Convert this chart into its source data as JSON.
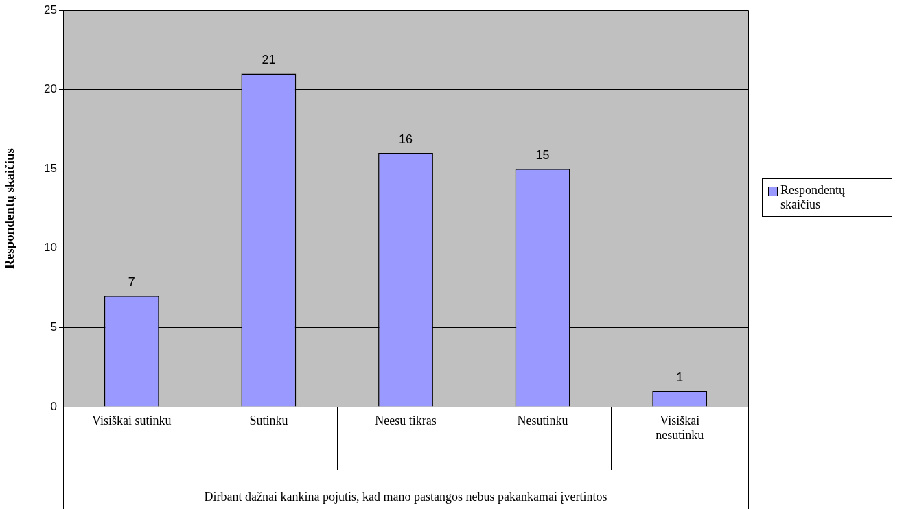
{
  "chart_data": {
    "type": "bar",
    "xlabel": "Dirbant dažnai kankina pojūtis, kad mano pastangos nebus pakankamai įvertintos",
    "ylabel": "Respondentų skaičius",
    "categories": [
      "Visiškai sutinku",
      "Sutinku",
      "Neesu tikras",
      "Nesutinku",
      "Visiškai nesutinku"
    ],
    "series": [
      {
        "name": "Respondentų skaičius",
        "color": "#9999ff",
        "values": [
          7,
          21,
          16,
          15,
          1
        ]
      }
    ],
    "ylim": [
      0,
      25
    ],
    "yticks": [
      0,
      5,
      10,
      15,
      20,
      25
    ],
    "grid": "y",
    "legend": "right",
    "data_labels": true
  }
}
